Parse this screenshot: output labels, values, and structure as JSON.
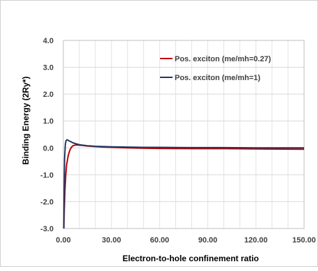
{
  "chart_data": {
    "type": "line",
    "title": "",
    "xlabel": "Electron-to-hole confinement ratio",
    "ylabel": "Binding Energy (2Ry*)",
    "xlim": [
      0,
      150
    ],
    "ylim": [
      -3,
      4
    ],
    "xticks": [
      0,
      30,
      60,
      90,
      120,
      150
    ],
    "yticks": [
      -3,
      -2,
      -1,
      0,
      1,
      2,
      3,
      4
    ],
    "xtick_labels": [
      "0.00",
      "30.00",
      "60.00",
      "90.00",
      "120.00",
      "150.00"
    ],
    "ytick_labels": [
      "-3.0",
      "-2.0",
      "-1.0",
      "0.0",
      "1.0",
      "2.0",
      "3.0",
      "4.0"
    ],
    "grid": true,
    "legend_position": "top-right",
    "series": [
      {
        "name": "Pos. exciton (me/mh=0.27)",
        "color": "#c00000",
        "x": [
          0.3,
          0.6,
          1.0,
          1.5,
          2.0,
          3.0,
          4.0,
          5.0,
          6.0,
          8.0,
          10.0,
          12.0,
          15.0,
          20.0,
          25.0,
          30.0,
          40.0,
          50.0,
          60.0,
          80.0,
          100.0,
          120.0,
          150.0
        ],
        "y": [
          -3.0,
          -2.3,
          -1.6,
          -1.0,
          -0.65,
          -0.3,
          -0.1,
          0.02,
          0.08,
          0.11,
          0.1,
          0.09,
          0.07,
          0.05,
          0.03,
          0.02,
          0.0,
          -0.01,
          -0.02,
          -0.03,
          -0.03,
          -0.04,
          -0.05
        ]
      },
      {
        "name": "Pos. exciton (me/mh=1)",
        "color": "#1f3864",
        "x": [
          0.3,
          0.5,
          0.8,
          1.2,
          1.6,
          2.0,
          2.5,
          3.0,
          4.0,
          5.0,
          6.0,
          8.0,
          10.0,
          15.0,
          20.0,
          30.0,
          40.0,
          50.0,
          60.0,
          80.0,
          100.0,
          120.0,
          150.0
        ],
        "y": [
          -3.0,
          -1.5,
          -0.4,
          0.1,
          0.25,
          0.29,
          0.3,
          0.28,
          0.25,
          0.22,
          0.19,
          0.15,
          0.12,
          0.08,
          0.06,
          0.04,
          0.03,
          0.02,
          0.02,
          0.01,
          0.01,
          0.0,
          0.0
        ]
      }
    ]
  }
}
